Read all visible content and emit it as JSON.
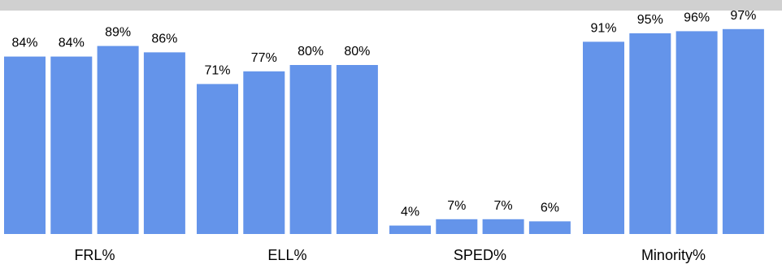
{
  "chart_data": {
    "type": "bar",
    "categories": [
      "FRL%",
      "ELL%",
      "SPED%",
      "Minority%"
    ],
    "series": [
      {
        "values": [
          84,
          71,
          4,
          91
        ]
      },
      {
        "values": [
          84,
          77,
          7,
          95
        ]
      },
      {
        "values": [
          89,
          80,
          7,
          96
        ]
      },
      {
        "values": [
          86,
          80,
          6,
          97
        ]
      }
    ],
    "data_labels": [
      [
        "84%",
        "84%",
        "89%",
        "86%"
      ],
      [
        "71%",
        "77%",
        "80%",
        "80%"
      ],
      [
        "4%",
        "7%",
        "7%",
        "6%"
      ],
      [
        "91%",
        "95%",
        "96%",
        "97%"
      ]
    ],
    "ylim": [
      0,
      100
    ],
    "grid": false,
    "title": "",
    "xlabel": "",
    "ylabel": "",
    "colors": {
      "bar": "#6494EA",
      "band": "#D0D0D0",
      "text": "#000000"
    }
  }
}
